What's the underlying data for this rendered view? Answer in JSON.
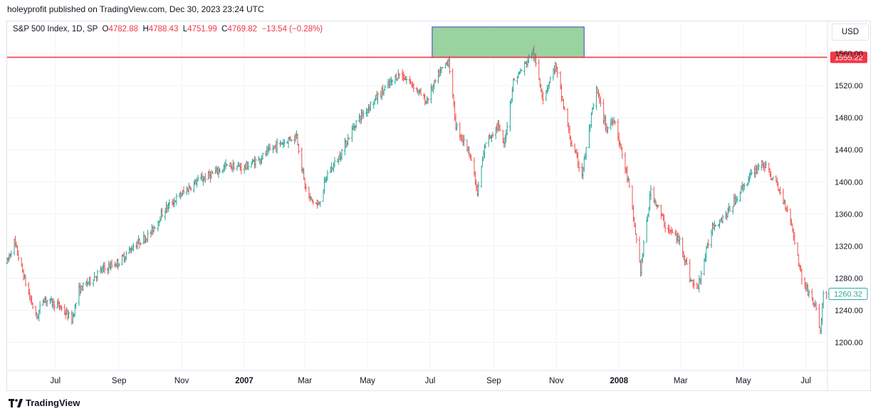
{
  "header": {
    "published": "holeyprofit published on TradingView.com, Dec 30, 2023 23:24 UTC"
  },
  "legend": {
    "symbol": "S&P 500 Index, 1D, SP",
    "o_label": "O",
    "o_value": "4782.88",
    "h_label": "H",
    "h_value": "4788.43",
    "l_label": "L",
    "l_value": "4751.99",
    "c_label": "C",
    "c_value": "4769.82",
    "change": "−13.54 (−0.28%)"
  },
  "currency_button": "USD",
  "footer": {
    "brand": "TradingView"
  },
  "colors": {
    "up": "#26a69a",
    "down": "#ef5350",
    "hline": "#f23645",
    "zone_fill": "#99d39f",
    "zone_border": "#3f3fbf",
    "grid": "#f0f3fa"
  },
  "chart_data": {
    "type": "ohlc",
    "x_tick_labels": [
      {
        "label": "Jul",
        "date": "2006-07"
      },
      {
        "label": "Sep",
        "date": "2006-09"
      },
      {
        "label": "Nov",
        "date": "2006-11"
      },
      {
        "label": "2007",
        "date": "2007-01",
        "bold": true
      },
      {
        "label": "Mar",
        "date": "2007-03"
      },
      {
        "label": "May",
        "date": "2007-05"
      },
      {
        "label": "Jul",
        "date": "2007-07"
      },
      {
        "label": "Sep",
        "date": "2007-09"
      },
      {
        "label": "Nov",
        "date": "2007-11"
      },
      {
        "label": "2008",
        "date": "2008-01",
        "bold": true
      },
      {
        "label": "Mar",
        "date": "2008-03"
      },
      {
        "label": "May",
        "date": "2008-05"
      },
      {
        "label": "Jul",
        "date": "2008-07"
      }
    ],
    "y_ticks": [
      "1200.00",
      "1240.00",
      "1280.00",
      "1320.00",
      "1360.00",
      "1400.00",
      "1440.00",
      "1480.00",
      "1520.00",
      "1560.00"
    ],
    "ylim": [
      1165,
      1600
    ],
    "xlim": [
      "2006-05-15",
      "2008-07-22"
    ],
    "path": [
      [
        "2006-05-15",
        1300
      ],
      [
        "2006-05-22",
        1325
      ],
      [
        "2006-06-05",
        1260
      ],
      [
        "2006-06-13",
        1230
      ],
      [
        "2006-06-19",
        1255
      ],
      [
        "2006-07-05",
        1245
      ],
      [
        "2006-07-17",
        1228
      ],
      [
        "2006-07-24",
        1265
      ],
      [
        "2006-08-15",
        1290
      ],
      [
        "2006-09-01",
        1300
      ],
      [
        "2006-09-15",
        1320
      ],
      [
        "2006-10-01",
        1335
      ],
      [
        "2006-10-15",
        1365
      ],
      [
        "2006-11-01",
        1385
      ],
      [
        "2006-11-15",
        1400
      ],
      [
        "2006-12-01",
        1410
      ],
      [
        "2006-12-15",
        1420
      ],
      [
        "2007-01-01",
        1418
      ],
      [
        "2007-01-15",
        1428
      ],
      [
        "2007-02-01",
        1445
      ],
      [
        "2007-02-21",
        1458
      ],
      [
        "2007-03-01",
        1395
      ],
      [
        "2007-03-05",
        1380
      ],
      [
        "2007-03-14",
        1370
      ],
      [
        "2007-03-23",
        1410
      ],
      [
        "2007-04-03",
        1430
      ],
      [
        "2007-04-20",
        1475
      ],
      [
        "2007-05-10",
        1505
      ],
      [
        "2007-06-01",
        1535
      ],
      [
        "2007-06-15",
        1520
      ],
      [
        "2007-06-27",
        1500
      ],
      [
        "2007-07-10",
        1535
      ],
      [
        "2007-07-19",
        1552
      ],
      [
        "2007-07-26",
        1470
      ],
      [
        "2007-08-09",
        1435
      ],
      [
        "2007-08-16",
        1385
      ],
      [
        "2007-08-24",
        1450
      ],
      [
        "2007-09-05",
        1470
      ],
      [
        "2007-09-11",
        1445
      ],
      [
        "2007-09-20",
        1525
      ],
      [
        "2007-10-01",
        1545
      ],
      [
        "2007-10-09",
        1563
      ],
      [
        "2007-10-19",
        1505
      ],
      [
        "2007-10-31",
        1545
      ],
      [
        "2007-11-15",
        1450
      ],
      [
        "2007-11-26",
        1410
      ],
      [
        "2007-12-05",
        1480
      ],
      [
        "2007-12-10",
        1515
      ],
      [
        "2007-12-20",
        1465
      ],
      [
        "2007-12-27",
        1480
      ],
      [
        "2008-01-10",
        1400
      ],
      [
        "2008-01-22",
        1290
      ],
      [
        "2008-02-01",
        1390
      ],
      [
        "2008-02-15",
        1345
      ],
      [
        "2008-03-01",
        1325
      ],
      [
        "2008-03-10",
        1280
      ],
      [
        "2008-03-17",
        1265
      ],
      [
        "2008-04-01",
        1345
      ],
      [
        "2008-04-15",
        1360
      ],
      [
        "2008-05-01",
        1395
      ],
      [
        "2008-05-19",
        1425
      ],
      [
        "2008-06-01",
        1400
      ],
      [
        "2008-06-15",
        1360
      ],
      [
        "2008-06-27",
        1280
      ],
      [
        "2008-07-10",
        1245
      ],
      [
        "2008-07-15",
        1215
      ],
      [
        "2008-07-18",
        1260
      ]
    ],
    "horizontal_line": {
      "value": 1555.22,
      "label": "1555.22"
    },
    "last_price": {
      "value": 1260.32,
      "label": "1260.32"
    },
    "zone": {
      "x0": "2007-07-03",
      "x1": "2007-11-28",
      "y0": 1555,
      "y1": 1593
    }
  }
}
